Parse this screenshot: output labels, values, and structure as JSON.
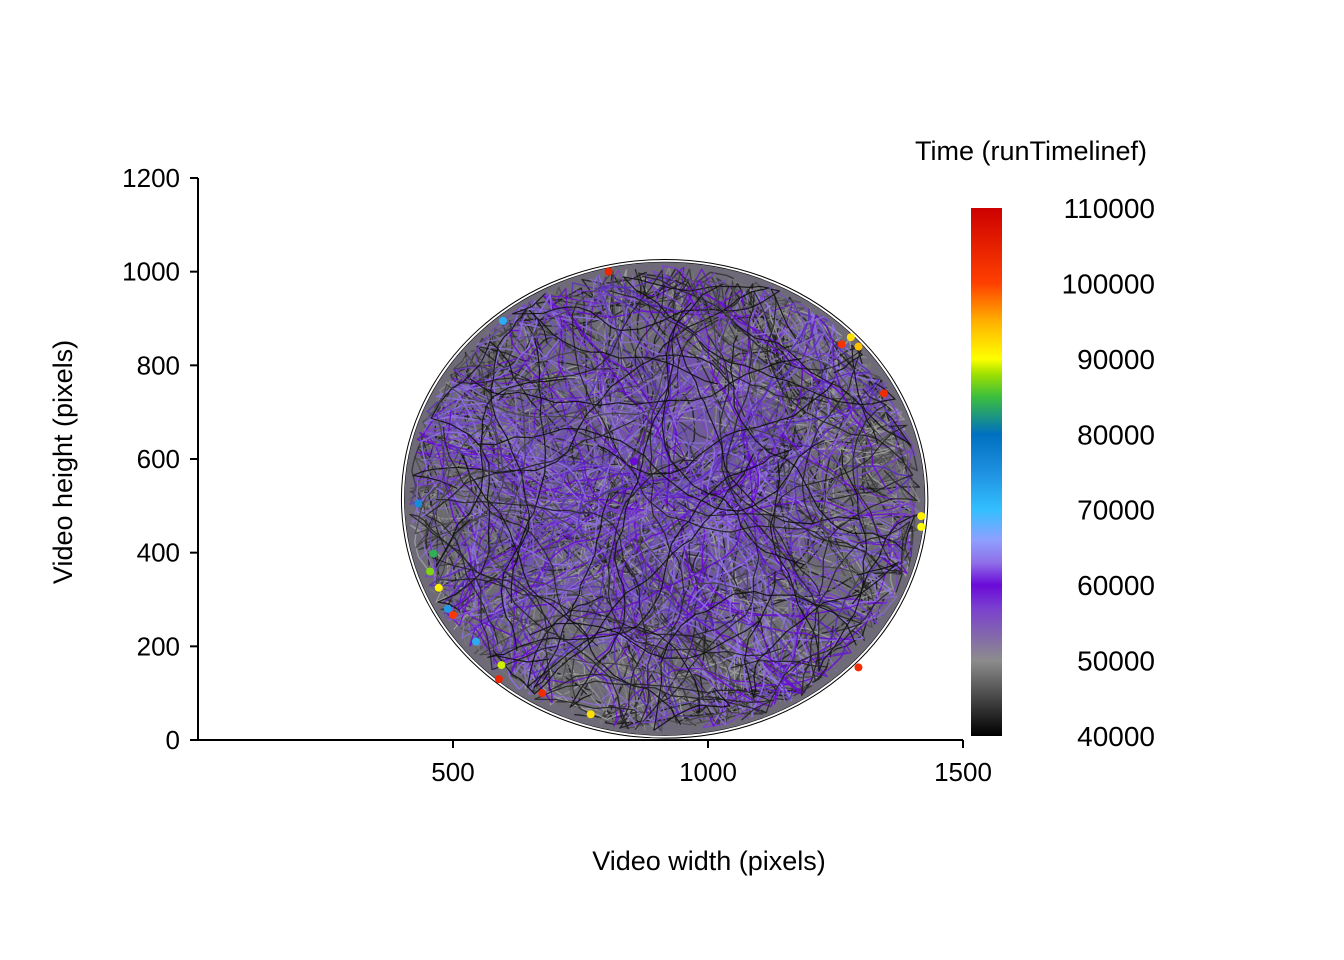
{
  "chart_data": {
    "type": "scatter",
    "subtype": "trajectory-path",
    "title": "",
    "xlabel": "Video width (pixels)",
    "ylabel": "Video height (pixels)",
    "xlim": [
      0,
      1500
    ],
    "ylim": [
      0,
      1200
    ],
    "x_ticks": [
      500,
      1000,
      1500
    ],
    "y_ticks": [
      0,
      200,
      400,
      600,
      800,
      1000,
      1200
    ],
    "grid": false,
    "legend": {
      "title": "Time (runTimelinef)",
      "placement": "right",
      "type": "colorbar",
      "ticks": [
        40000,
        50000,
        60000,
        70000,
        80000,
        90000,
        100000,
        110000
      ],
      "range": [
        40000,
        110000
      ],
      "colorscale": [
        [
          40000,
          "#000000"
        ],
        [
          50000,
          "#8c8c8c"
        ],
        [
          57000,
          "#7a3fd0"
        ],
        [
          60000,
          "#6a0ad8"
        ],
        [
          63000,
          "#8f70e8"
        ],
        [
          66000,
          "#8ea0ff"
        ],
        [
          70000,
          "#33bfff"
        ],
        [
          75000,
          "#1e90e0"
        ],
        [
          80000,
          "#0070c0"
        ],
        [
          85000,
          "#3cbf3c"
        ],
        [
          88000,
          "#a0e000"
        ],
        [
          90000,
          "#ffff00"
        ],
        [
          95000,
          "#ffb000"
        ],
        [
          100000,
          "#ff4000"
        ],
        [
          110000,
          "#cc0000"
        ]
      ]
    },
    "arena": {
      "center_x": 915,
      "center_y": 515,
      "radius_x": 510,
      "radius_y": 505
    },
    "highlight_points": [
      {
        "x": 432,
        "y": 505,
        "t": 76000
      },
      {
        "x": 462,
        "y": 398,
        "t": 84000
      },
      {
        "x": 455,
        "y": 360,
        "t": 87000
      },
      {
        "x": 472,
        "y": 325,
        "t": 91000
      },
      {
        "x": 490,
        "y": 280,
        "t": 74000
      },
      {
        "x": 500,
        "y": 267,
        "t": 101000
      },
      {
        "x": 545,
        "y": 210,
        "t": 72000
      },
      {
        "x": 595,
        "y": 160,
        "t": 89000
      },
      {
        "x": 590,
        "y": 130,
        "t": 104000
      },
      {
        "x": 675,
        "y": 100,
        "t": 103000
      },
      {
        "x": 770,
        "y": 55,
        "t": 92000
      },
      {
        "x": 598,
        "y": 895,
        "t": 72000
      },
      {
        "x": 805,
        "y": 1000,
        "t": 104000
      },
      {
        "x": 1280,
        "y": 860,
        "t": 92000
      },
      {
        "x": 1295,
        "y": 840,
        "t": 94000
      },
      {
        "x": 1262,
        "y": 845,
        "t": 102000
      },
      {
        "x": 1345,
        "y": 740,
        "t": 103000
      },
      {
        "x": 1418,
        "y": 478,
        "t": 91000
      },
      {
        "x": 1418,
        "y": 455,
        "t": 90000
      },
      {
        "x": 1295,
        "y": 155,
        "t": 103000
      },
      {
        "x": 855,
        "y": 595,
        "t": 60000
      }
    ]
  }
}
